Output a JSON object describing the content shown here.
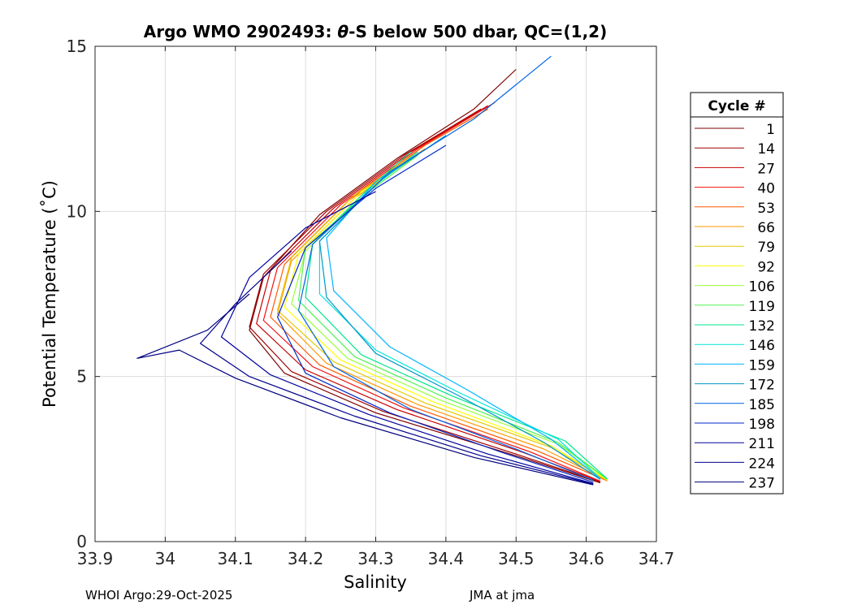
{
  "chart_data": {
    "type": "line",
    "title_prefix": "Argo WMO 2902493: ",
    "title_theta": "θ",
    "title_suffix": "-S below 500 dbar,  QC=(1,2)",
    "xlabel": "Salinity",
    "ylabel": "Potential Temperature (˚C)",
    "xlim": [
      33.9,
      34.7
    ],
    "ylim": [
      0,
      15
    ],
    "xticks": [
      33.9,
      34,
      34.1,
      34.2,
      34.3,
      34.4,
      34.5,
      34.6,
      34.7
    ],
    "xtick_labels": [
      "33.9",
      "34",
      "34.1",
      "34.2",
      "34.3",
      "34.4",
      "34.5",
      "34.6",
      "34.7"
    ],
    "yticks": [
      0,
      5,
      10,
      15
    ],
    "ytick_labels": [
      "0",
      "5",
      "10",
      "15"
    ],
    "grid": true,
    "legend_title": "Cycle #",
    "legend_position": "right",
    "series": [
      {
        "name": "1",
        "color": "#800000",
        "points": [
          [
            34.62,
            1.78
          ],
          [
            34.5,
            2.6
          ],
          [
            34.3,
            3.9
          ],
          [
            34.17,
            5.1
          ],
          [
            34.12,
            6.4
          ],
          [
            34.14,
            8.0
          ],
          [
            34.22,
            9.9
          ],
          [
            34.33,
            11.6
          ],
          [
            34.44,
            13.1
          ],
          [
            34.5,
            14.3
          ]
        ]
      },
      {
        "name": "14",
        "color": "#a00000",
        "points": [
          [
            34.62,
            1.8
          ],
          [
            34.5,
            2.65
          ],
          [
            34.31,
            3.95
          ],
          [
            34.18,
            5.15
          ],
          [
            34.12,
            6.5
          ],
          [
            34.14,
            8.1
          ],
          [
            34.23,
            10.0
          ],
          [
            34.34,
            11.7
          ],
          [
            34.45,
            13.1
          ]
        ]
      },
      {
        "name": "27",
        "color": "#c80000",
        "points": [
          [
            34.62,
            1.82
          ],
          [
            34.51,
            2.7
          ],
          [
            34.33,
            4.0
          ],
          [
            34.2,
            5.2
          ],
          [
            34.13,
            6.6
          ],
          [
            34.15,
            8.2
          ],
          [
            34.24,
            10.1
          ],
          [
            34.35,
            11.8
          ],
          [
            34.46,
            13.2
          ]
        ]
      },
      {
        "name": "40",
        "color": "#f01010",
        "points": [
          [
            34.62,
            1.83
          ],
          [
            34.52,
            2.72
          ],
          [
            34.34,
            4.05
          ],
          [
            34.21,
            5.3
          ],
          [
            34.14,
            6.7
          ],
          [
            34.16,
            8.3
          ],
          [
            34.25,
            10.2
          ],
          [
            34.36,
            11.9
          ],
          [
            34.47,
            13.3
          ]
        ]
      },
      {
        "name": "53",
        "color": "#ff5a00",
        "points": [
          [
            34.63,
            1.84
          ],
          [
            34.53,
            2.75
          ],
          [
            34.35,
            4.1
          ],
          [
            34.22,
            5.35
          ],
          [
            34.15,
            6.8
          ],
          [
            34.17,
            8.4
          ],
          [
            34.26,
            10.3
          ],
          [
            34.37,
            12.0
          ],
          [
            34.46,
            13.1
          ]
        ]
      },
      {
        "name": "66",
        "color": "#ff9a00",
        "points": [
          [
            34.63,
            1.85
          ],
          [
            34.54,
            2.8
          ],
          [
            34.36,
            4.15
          ],
          [
            34.23,
            5.4
          ],
          [
            34.16,
            6.9
          ],
          [
            34.18,
            8.5
          ],
          [
            34.27,
            10.4
          ],
          [
            34.37,
            11.9
          ]
        ]
      },
      {
        "name": "79",
        "color": "#e6c800",
        "points": [
          [
            34.63,
            1.86
          ],
          [
            34.55,
            2.85
          ],
          [
            34.37,
            4.2
          ],
          [
            34.24,
            5.45
          ],
          [
            34.16,
            7.0
          ],
          [
            34.18,
            8.6
          ],
          [
            34.27,
            10.5
          ],
          [
            34.36,
            11.8
          ]
        ]
      },
      {
        "name": "92",
        "color": "#ffff00",
        "points": [
          [
            34.63,
            1.87
          ],
          [
            34.55,
            2.9
          ],
          [
            34.38,
            4.25
          ],
          [
            34.25,
            5.5
          ],
          [
            34.17,
            7.1
          ],
          [
            34.19,
            8.7
          ],
          [
            34.28,
            10.6
          ],
          [
            34.36,
            11.7
          ]
        ]
      },
      {
        "name": "106",
        "color": "#9bff3c",
        "points": [
          [
            34.63,
            1.88
          ],
          [
            34.56,
            2.95
          ],
          [
            34.39,
            4.3
          ],
          [
            34.26,
            5.55
          ],
          [
            34.18,
            7.2
          ],
          [
            34.2,
            8.8
          ],
          [
            34.28,
            10.5
          ],
          [
            34.35,
            11.6
          ]
        ]
      },
      {
        "name": "119",
        "color": "#50f050",
        "points": [
          [
            34.63,
            1.89
          ],
          [
            34.56,
            3.0
          ],
          [
            34.4,
            4.35
          ],
          [
            34.27,
            5.6
          ],
          [
            34.19,
            7.3
          ],
          [
            34.2,
            8.9
          ],
          [
            34.29,
            10.6
          ],
          [
            34.36,
            11.7
          ]
        ]
      },
      {
        "name": "132",
        "color": "#00e68c",
        "points": [
          [
            34.63,
            1.9
          ],
          [
            34.57,
            3.05
          ],
          [
            34.41,
            4.4
          ],
          [
            34.28,
            5.65
          ],
          [
            34.2,
            7.4
          ],
          [
            34.21,
            9.0
          ],
          [
            34.29,
            10.7
          ],
          [
            34.35,
            11.8
          ]
        ]
      },
      {
        "name": "146",
        "color": "#00e6dc",
        "points": [
          [
            34.62,
            1.91
          ],
          [
            34.56,
            3.1
          ],
          [
            34.42,
            4.5
          ],
          [
            34.3,
            5.8
          ],
          [
            34.22,
            7.5
          ],
          [
            34.22,
            9.1
          ],
          [
            34.3,
            10.8
          ],
          [
            34.36,
            11.8
          ]
        ]
      },
      {
        "name": "159",
        "color": "#00b4ff",
        "points": [
          [
            34.62,
            1.9
          ],
          [
            34.55,
            3.1
          ],
          [
            34.43,
            4.6
          ],
          [
            34.32,
            5.9
          ],
          [
            34.24,
            7.6
          ],
          [
            34.23,
            9.2
          ],
          [
            34.3,
            10.9
          ],
          [
            34.38,
            12.0
          ]
        ]
      },
      {
        "name": "172",
        "color": "#0096c8",
        "points": [
          [
            34.62,
            1.88
          ],
          [
            34.54,
            3.0
          ],
          [
            34.42,
            4.4
          ],
          [
            34.3,
            5.7
          ],
          [
            34.23,
            7.4
          ],
          [
            34.22,
            9.1
          ],
          [
            34.31,
            11.0
          ],
          [
            34.4,
            12.3
          ]
        ]
      },
      {
        "name": "185",
        "color": "#0064e6",
        "points": [
          [
            34.61,
            1.86
          ],
          [
            34.5,
            2.8
          ],
          [
            34.35,
            4.0
          ],
          [
            34.24,
            5.3
          ],
          [
            34.19,
            7.0
          ],
          [
            34.21,
            9.0
          ],
          [
            34.32,
            11.2
          ],
          [
            34.44,
            12.8
          ],
          [
            34.55,
            14.7
          ]
        ]
      },
      {
        "name": "198",
        "color": "#0028c8",
        "points": [
          [
            34.61,
            1.8
          ],
          [
            34.48,
            2.7
          ],
          [
            34.32,
            3.9
          ],
          [
            34.2,
            5.1
          ],
          [
            34.16,
            6.8
          ],
          [
            34.2,
            8.9
          ],
          [
            34.3,
            10.7
          ],
          [
            34.4,
            12.0
          ]
        ]
      },
      {
        "name": "211",
        "color": "#0000a0",
        "points": [
          [
            34.61,
            1.76
          ],
          [
            34.46,
            2.65
          ],
          [
            34.29,
            3.85
          ],
          [
            34.15,
            5.05
          ],
          [
            34.08,
            6.2
          ],
          [
            34.12,
            8.0
          ],
          [
            34.2,
            9.5
          ],
          [
            34.3,
            10.6
          ]
        ]
      },
      {
        "name": "224",
        "color": "#00008c",
        "points": [
          [
            34.61,
            1.74
          ],
          [
            34.45,
            2.6
          ],
          [
            34.27,
            3.8
          ],
          [
            34.12,
            5.0
          ],
          [
            34.05,
            6.0
          ],
          [
            34.1,
            7.2
          ],
          [
            34.18,
            8.8
          ]
        ]
      },
      {
        "name": "237",
        "color": "#000080",
        "points": [
          [
            34.61,
            1.72
          ],
          [
            34.44,
            2.55
          ],
          [
            34.25,
            3.75
          ],
          [
            34.1,
            4.95
          ],
          [
            34.02,
            5.8
          ],
          [
            33.96,
            5.55
          ],
          [
            34.06,
            6.4
          ],
          [
            34.12,
            7.5
          ]
        ]
      }
    ]
  },
  "footer": {
    "left": "WHOI Argo:29-Oct-2025",
    "right": "JMA at jma"
  }
}
